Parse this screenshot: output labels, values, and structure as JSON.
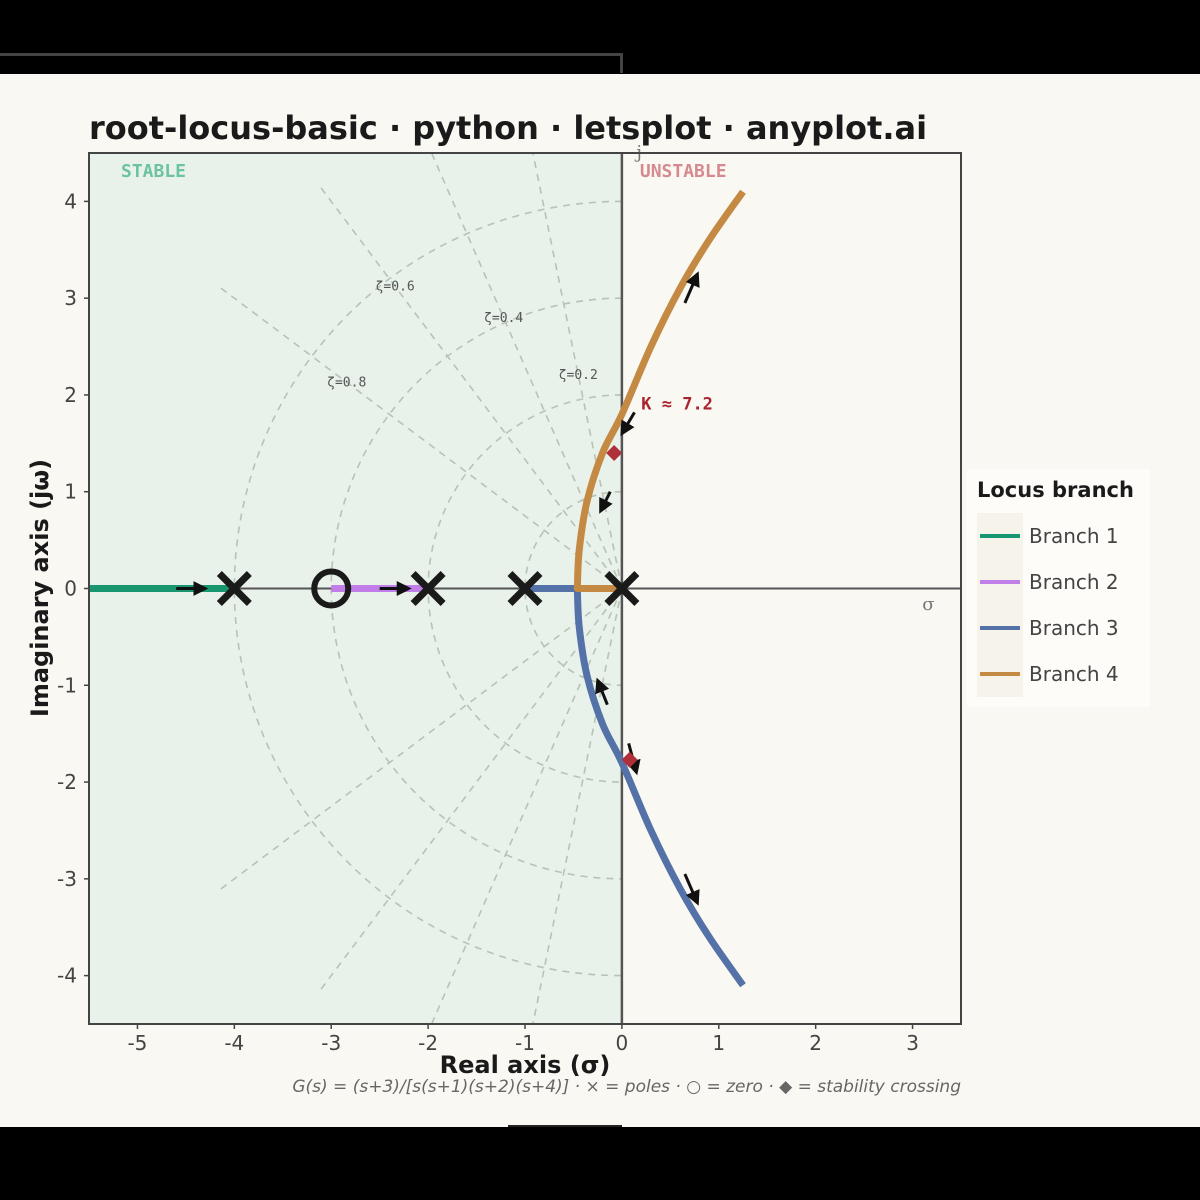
{
  "chart_data": {
    "type": "line",
    "title": "root-locus-basic · python · letsplot · anyplot.ai",
    "xlabel": "Real axis (σ)",
    "ylabel": "Imaginary axis (jω)",
    "xlim": [
      -5.5,
      3.5
    ],
    "ylim": [
      -4.5,
      4.5
    ],
    "x_ticks": [
      -5,
      -4,
      -3,
      -2,
      -1,
      0,
      1,
      2,
      3
    ],
    "y_ticks": [
      -4,
      -3,
      -2,
      -1,
      0,
      1,
      2,
      3,
      4
    ],
    "grid": false,
    "legend": {
      "title": "Locus branch",
      "placement": "right"
    },
    "regions": [
      {
        "label": "STABLE",
        "x_range": [
          -5.5,
          0
        ],
        "color": "#e8f1ea",
        "label_color": "#6cc3a0"
      },
      {
        "label": "UNSTABLE",
        "x_range": [
          0,
          3.5
        ],
        "color": "#faf8f2",
        "label_color": "#d68a8f"
      }
    ],
    "damping_lines": [
      {
        "label": "ζ=0.8",
        "zeta": 0.8
      },
      {
        "label": "ζ=0.6",
        "zeta": 0.6
      },
      {
        "label": "ζ=0.4",
        "zeta": 0.4
      },
      {
        "label": "ζ=0.2",
        "zeta": 0.2
      }
    ],
    "wn_circles": [
      1,
      2,
      3,
      4
    ],
    "poles": [
      [
        0,
        0
      ],
      [
        -1,
        0
      ],
      [
        -2,
        0
      ],
      [
        -4,
        0
      ]
    ],
    "zeros": [
      [
        -3,
        0
      ]
    ],
    "series": [
      {
        "name": "Branch 1",
        "color": "#17966f",
        "x": [
          -5.5,
          -4
        ],
        "y": [
          0,
          0
        ]
      },
      {
        "name": "Branch 2",
        "color": "#c17ee8",
        "x": [
          -3,
          -2
        ],
        "y": [
          0,
          0
        ]
      },
      {
        "name": "Branch 3",
        "color": "#5472a8",
        "x": [
          -1,
          -0.46,
          -0.44,
          -0.36,
          -0.2,
          0.0,
          0.3,
          0.6,
          0.9,
          1.25
        ],
        "y": [
          0,
          0,
          -0.4,
          -0.9,
          -1.4,
          -1.8,
          -2.5,
          -3.1,
          -3.6,
          -4.1
        ]
      },
      {
        "name": "Branch 4",
        "color": "#c48a44",
        "x": [
          0,
          -0.46,
          -0.44,
          -0.36,
          -0.2,
          0.0,
          0.3,
          0.6,
          0.9,
          1.25
        ],
        "y": [
          0,
          0,
          0.4,
          0.9,
          1.4,
          1.8,
          2.5,
          3.1,
          3.6,
          4.1
        ]
      }
    ],
    "stability_crossings": [
      [
        -0.08,
        1.4
      ],
      [
        0.08,
        -1.77
      ]
    ],
    "annotations": [
      {
        "text": "K ≈ 7.2",
        "x": 0.2,
        "y": 1.85
      },
      {
        "text": "σ",
        "x": 3.1,
        "y": -0.22
      },
      {
        "text": "j",
        "x": 0.15,
        "y": 4.45
      }
    ],
    "caption": "G(s) = (s+3)/[s(s+1)(s+2)(s+4)]  ·  × = poles  ·  ○ = zero  ·  ◆ = stability crossing"
  }
}
